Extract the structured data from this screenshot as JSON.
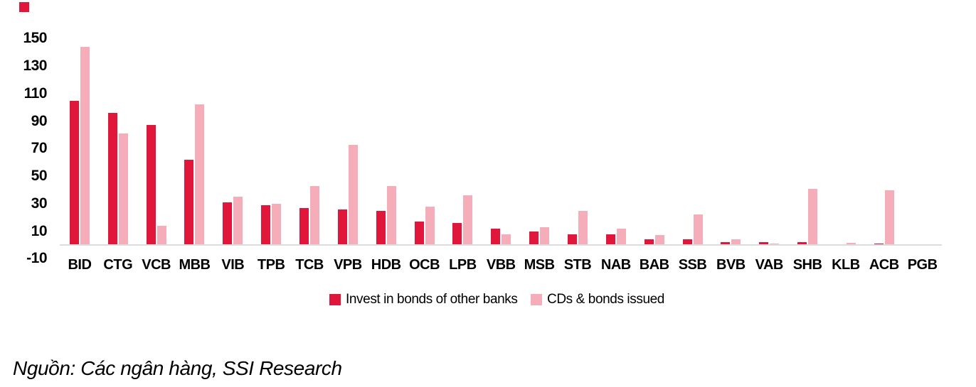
{
  "chart_data": {
    "type": "bar",
    "title": "",
    "xlabel": "",
    "ylabel": "",
    "categories": [
      "BID",
      "CTG",
      "VCB",
      "MBB",
      "VIB",
      "TPB",
      "TCB",
      "VPB",
      "HDB",
      "OCB",
      "LPB",
      "VBB",
      "MSB",
      "STB",
      "NAB",
      "BAB",
      "SSB",
      "BVB",
      "VAB",
      "SHB",
      "KLB",
      "ACB",
      "PGB"
    ],
    "series": [
      {
        "name": "Invest in bonds of other banks",
        "color": "#E0163A",
        "values": [
          105,
          96,
          87,
          62,
          31,
          29,
          27,
          26,
          25,
          17,
          16,
          12,
          10,
          8,
          8,
          4,
          4,
          2,
          2,
          2,
          0,
          1,
          0
        ]
      },
      {
        "name": "CDs & bonds issued",
        "color": "#F5ADB9",
        "values": [
          144,
          81,
          14,
          102,
          35,
          30,
          43,
          73,
          43,
          28,
          36,
          8,
          13,
          25,
          12,
          7,
          22,
          4,
          1,
          41,
          1.5,
          40,
          0.5
        ]
      }
    ],
    "y_ticks": [
      150,
      130,
      110,
      90,
      70,
      50,
      30,
      10,
      -10
    ],
    "ylim": [
      -10,
      150
    ],
    "grid": false,
    "legend_position": "bottom-center",
    "axis_line_color": "#DCDCDC"
  },
  "decor": {
    "corner_bullet_color": "#E0163A"
  },
  "source_note": "Nguồn: Các ngân hàng, SSI Research"
}
